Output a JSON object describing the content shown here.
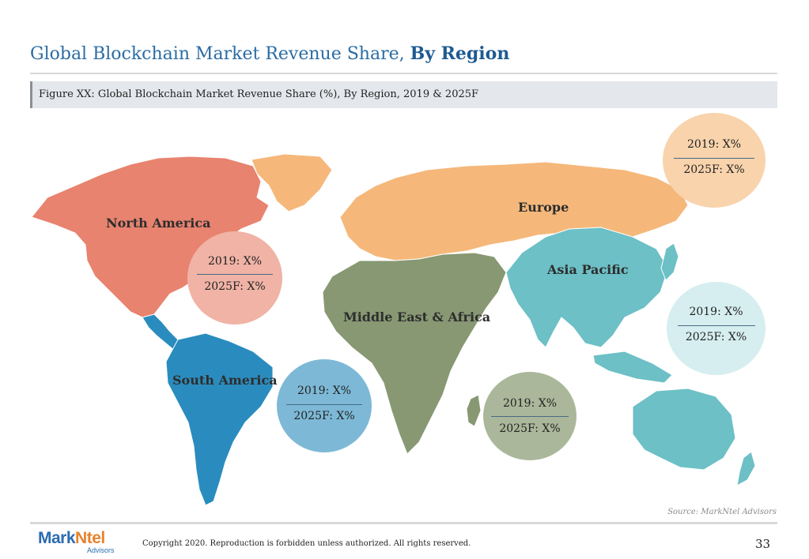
{
  "title": {
    "main": "Global Blockchain Market Revenue Share,",
    "bold": "By Region"
  },
  "figure_caption": "Figure XX: Global Blockchain Market Revenue Share (%), By Region, 2019 & 2025F",
  "regions": [
    {
      "name": "North America",
      "color": "#e8836f",
      "bubble_color": "#f0b3a5",
      "v2019": "2019: X%",
      "v2025": "2025F: X%"
    },
    {
      "name": "Europe",
      "color": "#f5b87a",
      "bubble_color": "#f8d3ac",
      "v2019": "2019: X%",
      "v2025": "2025F: X%"
    },
    {
      "name": "Asia Pacific",
      "color": "#6cc0c6",
      "bubble_color": "#d6eef0",
      "v2019": "2019: X%",
      "v2025": "2025F: X%"
    },
    {
      "name": "Middle East & Africa",
      "color": "#879873",
      "bubble_color": "#aab79a",
      "v2019": "2019: X%",
      "v2025": "2025F: X%"
    },
    {
      "name": "South America",
      "color": "#2a8cbe",
      "bubble_color": "#7db9d6",
      "v2019": "2019: X%",
      "v2025": "2025F: X%"
    }
  ],
  "source": "Source: MarkNtel Advisors",
  "footer": {
    "logo_mark": "Mark",
    "logo_ntel": "Ntel",
    "logo_sub": "Advisors",
    "copyright": "Copyright 2020. Reproduction is forbidden unless authorized. All rights reserved.",
    "page_number": "33"
  }
}
